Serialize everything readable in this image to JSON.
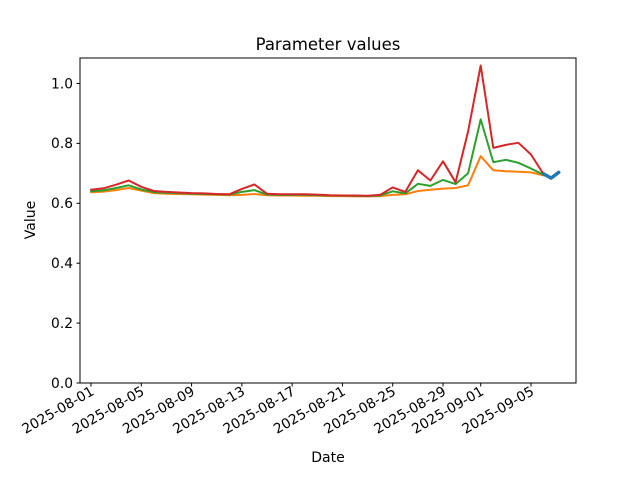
{
  "chart_data": {
    "type": "line",
    "title": "Parameter values",
    "xlabel": "Date",
    "ylabel": "Value",
    "grid": false,
    "legend": null,
    "background_color": "#ffffff",
    "spine_color": "#000000",
    "ylim": [
      0.0,
      1.085
    ],
    "xlim_days": [
      -0.875,
      38.58
    ],
    "yticks": [
      0.0,
      0.2,
      0.4,
      0.6,
      0.8,
      1.0
    ],
    "xticks": [
      {
        "day": 0,
        "label": "2025-08-01"
      },
      {
        "day": 4,
        "label": "2025-08-05"
      },
      {
        "day": 8,
        "label": "2025-08-09"
      },
      {
        "day": 12,
        "label": "2025-08-13"
      },
      {
        "day": 16,
        "label": "2025-08-17"
      },
      {
        "day": 20,
        "label": "2025-08-21"
      },
      {
        "day": 24,
        "label": "2025-08-25"
      },
      {
        "day": 28,
        "label": "2025-08-29"
      },
      {
        "day": 31,
        "label": "2025-09-01"
      },
      {
        "day": 35,
        "label": "2025-09-05"
      }
    ],
    "dates": [
      "2025-08-01",
      "2025-08-02",
      "2025-08-03",
      "2025-08-04",
      "2025-08-05",
      "2025-08-06",
      "2025-08-07",
      "2025-08-08",
      "2025-08-09",
      "2025-08-10",
      "2025-08-11",
      "2025-08-12",
      "2025-08-13",
      "2025-08-14",
      "2025-08-15",
      "2025-08-16",
      "2025-08-17",
      "2025-08-18",
      "2025-08-19",
      "2025-08-20",
      "2025-08-21",
      "2025-08-22",
      "2025-08-23",
      "2025-08-24",
      "2025-08-25",
      "2025-08-26",
      "2025-08-27",
      "2025-08-28",
      "2025-08-29",
      "2025-08-30",
      "2025-08-31",
      "2025-09-01",
      "2025-09-02",
      "2025-09-03",
      "2025-09-04",
      "2025-09-05",
      "2025-09-06"
    ],
    "series": [
      {
        "name": "orange-parameter-line",
        "color": "#ff7f0e",
        "linewidth": 2,
        "values": [
          0.637,
          0.639,
          0.644,
          0.651,
          0.642,
          0.634,
          0.632,
          0.631,
          0.63,
          0.629,
          0.628,
          0.627,
          0.628,
          0.631,
          0.627,
          0.626,
          0.626,
          0.625,
          0.625,
          0.624,
          0.624,
          0.623,
          0.623,
          0.624,
          0.628,
          0.63,
          0.641,
          0.645,
          0.649,
          0.651,
          0.66,
          0.757,
          0.71,
          0.707,
          0.705,
          0.703,
          0.693
        ]
      },
      {
        "name": "green-parameter-line",
        "color": "#2ca02c",
        "linewidth": 2,
        "values": [
          0.64,
          0.643,
          0.651,
          0.66,
          0.646,
          0.637,
          0.635,
          0.634,
          0.632,
          0.631,
          0.63,
          0.629,
          0.638,
          0.644,
          0.629,
          0.628,
          0.628,
          0.628,
          0.627,
          0.626,
          0.625,
          0.625,
          0.624,
          0.626,
          0.64,
          0.633,
          0.665,
          0.658,
          0.678,
          0.664,
          0.7,
          0.88,
          0.737,
          0.745,
          0.735,
          0.716,
          0.695
        ]
      },
      {
        "name": "red-parameter-line",
        "color": "#d62728",
        "linewidth": 2,
        "values": [
          0.645,
          0.65,
          0.662,
          0.676,
          0.655,
          0.641,
          0.638,
          0.636,
          0.634,
          0.633,
          0.631,
          0.63,
          0.648,
          0.663,
          0.632,
          0.63,
          0.63,
          0.63,
          0.629,
          0.627,
          0.626,
          0.626,
          0.625,
          0.628,
          0.653,
          0.638,
          0.71,
          0.676,
          0.74,
          0.67,
          0.84,
          1.06,
          0.785,
          0.795,
          0.802,
          0.763,
          0.697
        ]
      },
      {
        "name": "blue-end-marker-line",
        "color": "#1f77b4",
        "linewidth": 3.5,
        "x_days": [
          36.0,
          36.6,
          37.2
        ],
        "values": [
          0.698,
          0.684,
          0.703
        ]
      }
    ]
  }
}
